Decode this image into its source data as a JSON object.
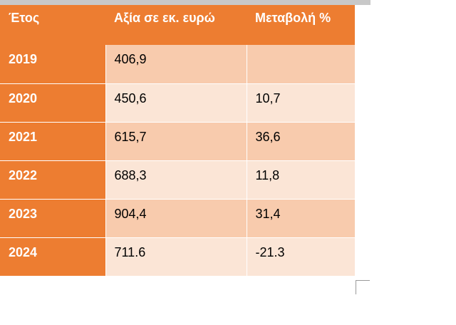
{
  "table": {
    "headers": [
      "Έτος",
      "Αξία σε εκ. ευρώ",
      "Μεταβολή %"
    ],
    "rows": [
      {
        "year": "2019",
        "value": "406,9",
        "change": ""
      },
      {
        "year": "2020",
        "value": "450,6",
        "change": "10,7"
      },
      {
        "year": "2021",
        "value": "615,7",
        "change": "36,6"
      },
      {
        "year": "2022",
        "value": "688,3",
        "change": "11,8"
      },
      {
        "year": "2023",
        "value": "904,4",
        "change": "31,4"
      },
      {
        "year": "2024",
        "value": "711.6",
        "change": "-21.3"
      }
    ]
  },
  "colors": {
    "accent": "#ed7d31",
    "row_dark": "#f8cbad",
    "row_light": "#fbe5d6"
  }
}
